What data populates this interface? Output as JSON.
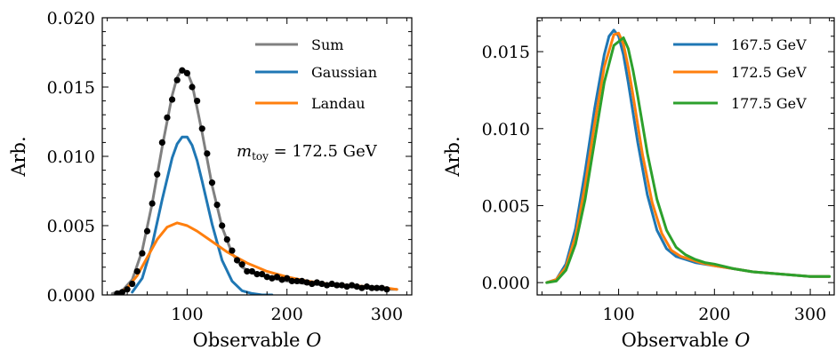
{
  "chart_data": [
    {
      "type": "line",
      "xlabel": "Observable",
      "xlabel_var": "O",
      "ylabel": "Arb.",
      "xlim": [
        15,
        325
      ],
      "ylim": [
        0,
        0.02
      ],
      "xticks": [
        100,
        200,
        300
      ],
      "yticks": [
        0.0,
        0.005,
        0.01,
        0.015,
        0.02
      ],
      "ytick_labels": [
        "0.000",
        "0.005",
        "0.010",
        "0.015",
        "0.020"
      ],
      "legend_position": "top-right",
      "annotation": {
        "prefix": "m",
        "subscript": "toy",
        "text": " = 172.5 GeV"
      },
      "series": [
        {
          "name": "Sum",
          "color": "#808080",
          "x": [
            25,
            35,
            45,
            55,
            65,
            75,
            85,
            90,
            95,
            100,
            105,
            110,
            115,
            125,
            135,
            145,
            155,
            165,
            175,
            185,
            200,
            220,
            240,
            260,
            280,
            300,
            310
          ],
          "y": [
            0.0001,
            0.0003,
            0.0011,
            0.0032,
            0.0066,
            0.0107,
            0.0144,
            0.0157,
            0.0163,
            0.0161,
            0.0152,
            0.0135,
            0.0117,
            0.0079,
            0.0049,
            0.003,
            0.002,
            0.0016,
            0.0014,
            0.0012,
            0.001,
            0.0008,
            0.0007,
            0.0006,
            0.0005,
            0.0004,
            0.0004
          ]
        },
        {
          "name": "Gaussian",
          "color": "#1f77b4",
          "x": [
            45,
            55,
            65,
            75,
            85,
            90,
            95,
            100,
            105,
            110,
            115,
            125,
            135,
            145,
            155,
            165,
            175,
            185
          ],
          "y": [
            0.0002,
            0.0012,
            0.0036,
            0.0069,
            0.0099,
            0.0109,
            0.0114,
            0.0114,
            0.0108,
            0.0097,
            0.0082,
            0.0051,
            0.0025,
            0.001,
            0.0003,
            0.0001,
            0.0,
            0.0
          ]
        },
        {
          "name": "Landau",
          "color": "#ff7f0e",
          "x": [
            30,
            40,
            50,
            60,
            70,
            80,
            90,
            100,
            110,
            120,
            130,
            140,
            150,
            160,
            170,
            180,
            200,
            220,
            240,
            260,
            280,
            300,
            310
          ],
          "y": [
            0.0001,
            0.0005,
            0.0014,
            0.0027,
            0.004,
            0.0049,
            0.0052,
            0.005,
            0.0046,
            0.0041,
            0.0036,
            0.0031,
            0.0027,
            0.0023,
            0.002,
            0.0017,
            0.0013,
            0.001,
            0.0008,
            0.0007,
            0.0006,
            0.0005,
            0.0004
          ]
        },
        {
          "name": "data",
          "color": "#000000",
          "markers": true,
          "x": [
            30,
            35,
            40,
            45,
            50,
            55,
            60,
            65,
            70,
            75,
            80,
            85,
            90,
            95,
            100,
            105,
            110,
            115,
            120,
            125,
            130,
            135,
            140,
            145,
            150,
            155,
            160,
            165,
            170,
            175,
            180,
            185,
            190,
            195,
            200,
            205,
            210,
            215,
            220,
            225,
            230,
            235,
            240,
            245,
            250,
            255,
            260,
            265,
            270,
            275,
            280,
            285,
            290,
            295,
            300
          ],
          "y": [
            0.0001,
            0.0002,
            0.0004,
            0.0008,
            0.0017,
            0.003,
            0.0046,
            0.0066,
            0.0087,
            0.011,
            0.0128,
            0.0141,
            0.0155,
            0.0162,
            0.016,
            0.015,
            0.014,
            0.012,
            0.0102,
            0.0081,
            0.0065,
            0.005,
            0.004,
            0.0032,
            0.0025,
            0.0022,
            0.0017,
            0.0017,
            0.0015,
            0.0015,
            0.0013,
            0.0012,
            0.0013,
            0.0011,
            0.0012,
            0.001,
            0.001,
            0.001,
            0.0009,
            0.0008,
            0.0009,
            0.0008,
            0.0007,
            0.0008,
            0.0007,
            0.0007,
            0.0006,
            0.0007,
            0.0006,
            0.0005,
            0.0006,
            0.0005,
            0.0005,
            0.0005,
            0.0004
          ]
        }
      ]
    },
    {
      "type": "line",
      "xlabel": "Observable",
      "xlabel_var": "O",
      "ylabel": "Arb.",
      "xlim": [
        15,
        325
      ],
      "ylim": [
        -0.0008,
        0.0172
      ],
      "xticks": [
        100,
        200,
        300
      ],
      "yticks": [
        0.0,
        0.005,
        0.01,
        0.015
      ],
      "ytick_labels": [
        "0.000",
        "0.005",
        "0.010",
        "0.015"
      ],
      "legend_position": "top-right",
      "series": [
        {
          "name": "167.5 GeV",
          "color": "#1f77b4",
          "x": [
            25,
            35,
            45,
            55,
            65,
            75,
            85,
            90,
            95,
            100,
            105,
            110,
            120,
            130,
            140,
            150,
            160,
            170,
            180,
            200,
            220,
            240,
            260,
            280,
            300,
            320
          ],
          "y": [
            0.0,
            0.0002,
            0.0012,
            0.0035,
            0.0072,
            0.0113,
            0.0148,
            0.016,
            0.0164,
            0.016,
            0.0148,
            0.013,
            0.0091,
            0.0057,
            0.0034,
            0.0022,
            0.0017,
            0.0015,
            0.0013,
            0.0011,
            0.0009,
            0.0007,
            0.0006,
            0.0005,
            0.0004,
            0.0004
          ]
        },
        {
          "name": "172.5 GeV",
          "color": "#ff7f0e",
          "x": [
            25,
            35,
            45,
            55,
            65,
            75,
            85,
            95,
            100,
            105,
            110,
            115,
            125,
            135,
            145,
            155,
            165,
            175,
            185,
            200,
            220,
            240,
            260,
            280,
            300,
            320
          ],
          "y": [
            0.0,
            0.0002,
            0.001,
            0.003,
            0.0063,
            0.0103,
            0.014,
            0.0161,
            0.0162,
            0.0155,
            0.014,
            0.0122,
            0.0083,
            0.0052,
            0.0032,
            0.0021,
            0.0017,
            0.0015,
            0.0013,
            0.0011,
            0.0009,
            0.0007,
            0.0006,
            0.0005,
            0.0004,
            0.0004
          ]
        },
        {
          "name": "177.5 GeV",
          "color": "#2ca02c",
          "x": [
            25,
            35,
            45,
            55,
            65,
            75,
            85,
            95,
            105,
            110,
            115,
            120,
            130,
            140,
            150,
            160,
            170,
            180,
            190,
            200,
            220,
            240,
            260,
            280,
            300,
            320
          ],
          "y": [
            0.0,
            0.0001,
            0.0008,
            0.0025,
            0.0054,
            0.0092,
            0.013,
            0.0154,
            0.0159,
            0.0152,
            0.0138,
            0.0121,
            0.0084,
            0.0054,
            0.0034,
            0.0023,
            0.0018,
            0.0015,
            0.0013,
            0.0012,
            0.0009,
            0.0007,
            0.0006,
            0.0005,
            0.0004,
            0.0004
          ]
        }
      ]
    }
  ]
}
